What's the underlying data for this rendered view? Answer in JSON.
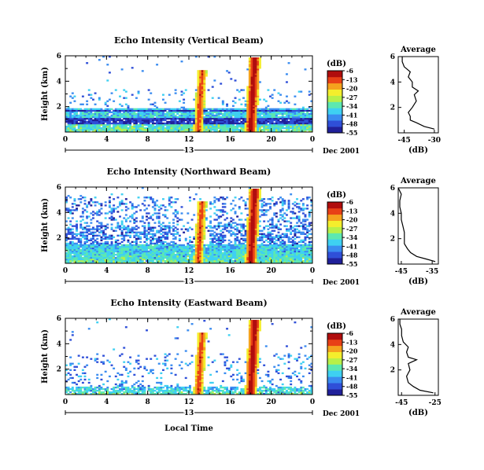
{
  "chart_data": {
    "type": "heatmap",
    "colorbar": {
      "label": "(dB)",
      "ticks": [
        "-6",
        "-13",
        "-20",
        "-27",
        "-34",
        "-41",
        "-48",
        "-55"
      ],
      "range": [
        -55,
        -6
      ]
    },
    "x_axis": {
      "ticks": [
        "0",
        "4",
        "8",
        "12",
        "16",
        "20",
        "0"
      ],
      "range": [
        0,
        24
      ],
      "day_label": "13",
      "date_label": "Dec 2001",
      "label": "Local Time"
    },
    "y_axis": {
      "label": "Height (km)",
      "ticks": [
        "2",
        "4",
        "6"
      ],
      "range": [
        0,
        6
      ]
    },
    "profile_title": "Average",
    "profile_xlabel": "(dB)",
    "panels": [
      {
        "title": "Echo Intensity (Vertical Beam)",
        "profile_xticks": [
          "-45",
          "-30"
        ],
        "profile_xrange": [
          -48,
          -28
        ],
        "profile": [
          {
            "h": 0.3,
            "db": -30
          },
          {
            "h": 0.5,
            "db": -35
          },
          {
            "h": 0.8,
            "db": -39
          },
          {
            "h": 1.0,
            "db": -42
          },
          {
            "h": 1.3,
            "db": -42
          },
          {
            "h": 1.6,
            "db": -43
          },
          {
            "h": 2.0,
            "db": -41
          },
          {
            "h": 2.5,
            "db": -39
          },
          {
            "h": 3.0,
            "db": -40
          },
          {
            "h": 3.3,
            "db": -38
          },
          {
            "h": 3.6,
            "db": -41
          },
          {
            "h": 4.0,
            "db": -41
          },
          {
            "h": 4.4,
            "db": -43
          },
          {
            "h": 4.8,
            "db": -42
          },
          {
            "h": 5.2,
            "db": -45
          },
          {
            "h": 5.6,
            "db": -46
          },
          {
            "h": 6.0,
            "db": -46
          }
        ]
      },
      {
        "title": "Echo Intensity (Northward Beam)",
        "profile_xticks": [
          "-45",
          "-35"
        ],
        "profile_xrange": [
          -46,
          -33
        ],
        "profile": [
          {
            "h": 0.2,
            "db": -34
          },
          {
            "h": 0.4,
            "db": -37
          },
          {
            "h": 0.6,
            "db": -40
          },
          {
            "h": 0.9,
            "db": -42
          },
          {
            "h": 1.2,
            "db": -43
          },
          {
            "h": 1.6,
            "db": -44
          },
          {
            "h": 2.0,
            "db": -44
          },
          {
            "h": 2.5,
            "db": -44
          },
          {
            "h": 3.0,
            "db": -44.5
          },
          {
            "h": 3.5,
            "db": -45
          },
          {
            "h": 4.0,
            "db": -45
          },
          {
            "h": 4.5,
            "db": -45.5
          },
          {
            "h": 5.0,
            "db": -45.5
          },
          {
            "h": 5.5,
            "db": -45
          },
          {
            "h": 6.0,
            "db": -46
          }
        ]
      },
      {
        "title": "Echo Intensity (Eastward Beam)",
        "profile_xticks": [
          "-45",
          "-25"
        ],
        "profile_xrange": [
          -47,
          -23
        ],
        "profile": [
          {
            "h": 0.2,
            "db": -26
          },
          {
            "h": 0.4,
            "db": -34
          },
          {
            "h": 0.7,
            "db": -38
          },
          {
            "h": 1.0,
            "db": -41
          },
          {
            "h": 1.5,
            "db": -42
          },
          {
            "h": 2.0,
            "db": -40
          },
          {
            "h": 2.5,
            "db": -41
          },
          {
            "h": 2.8,
            "db": -36
          },
          {
            "h": 3.0,
            "db": -41
          },
          {
            "h": 3.4,
            "db": -42
          },
          {
            "h": 3.8,
            "db": -41
          },
          {
            "h": 4.2,
            "db": -44
          },
          {
            "h": 4.7,
            "db": -45
          },
          {
            "h": 5.2,
            "db": -45
          },
          {
            "h": 5.6,
            "db": -46
          },
          {
            "h": 6.0,
            "db": -46
          }
        ]
      }
    ],
    "colors": {
      "scale": [
        "#20209a",
        "#2f4fd8",
        "#3a8cf0",
        "#3ed0f2",
        "#5de8b0",
        "#b8f048",
        "#f4ee2c",
        "#f5a21e",
        "#e84016",
        "#b00d0d"
      ]
    }
  }
}
